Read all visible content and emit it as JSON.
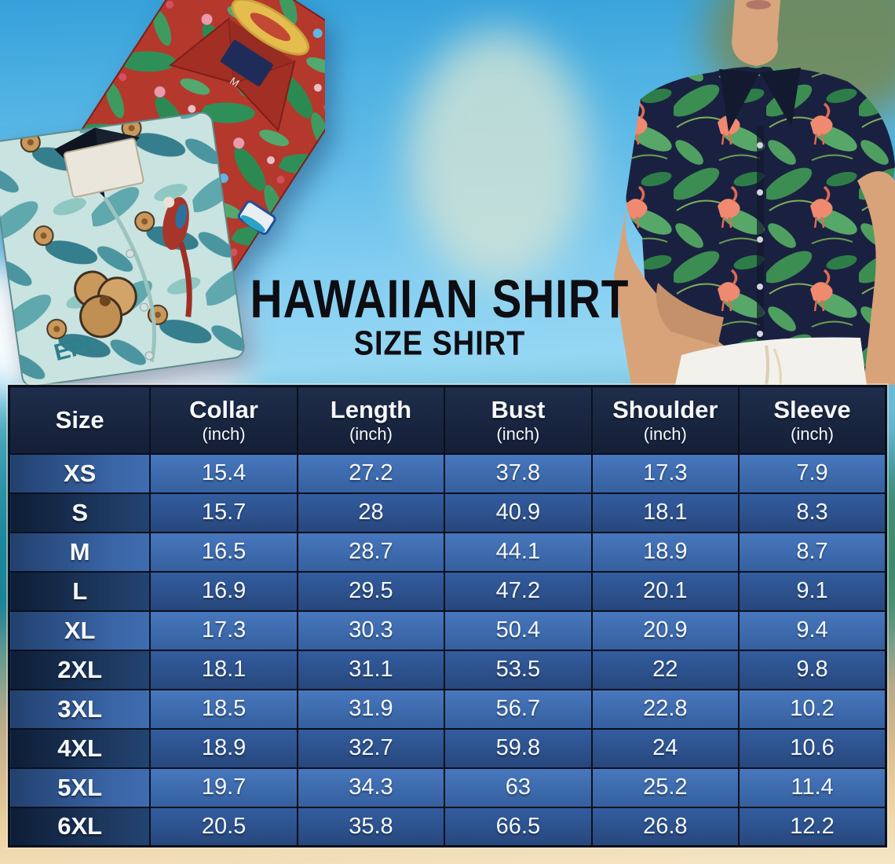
{
  "title": {
    "main": "HAWAIIAN SHIRT",
    "sub": "SIZE SHIRT"
  },
  "photos": {
    "left": "folded-hawaiian-shirts-photo",
    "right": "man-wearing-flamingo-hawaiian-shirt-photo",
    "shirt_print_text": "EPL",
    "neck_tag_size": "M"
  },
  "colors": {
    "header_bg": "#18253f",
    "row_light_value": "#3d6bb1",
    "row_dark_value": "#2c5190",
    "size_col_light": "#2c4d80",
    "size_col_dark": "#152843",
    "grid_line": "#0a101e",
    "table_text": "#ffffff",
    "title_text": "#0d0d12",
    "sky": "#4db1e2",
    "sea": "#1f8296",
    "sand": "#ecd2a4"
  },
  "chart_data": {
    "type": "table",
    "title": "HAWAIIAN SHIRT",
    "subtitle": "SIZE SHIRT",
    "columns": [
      {
        "label": "Size",
        "unit": ""
      },
      {
        "label": "Collar",
        "unit": "(inch)"
      },
      {
        "label": "Length",
        "unit": "(inch)"
      },
      {
        "label": "Bust",
        "unit": "(inch)"
      },
      {
        "label": "Shoulder",
        "unit": "(inch)"
      },
      {
        "label": "Sleeve",
        "unit": "(inch)"
      }
    ],
    "rows": [
      {
        "size": "XS",
        "values": [
          "15.4",
          "27.2",
          "37.8",
          "17.3",
          "7.9"
        ]
      },
      {
        "size": "S",
        "values": [
          "15.7",
          "28",
          "40.9",
          "18.1",
          "8.3"
        ]
      },
      {
        "size": "M",
        "values": [
          "16.5",
          "28.7",
          "44.1",
          "18.9",
          "8.7"
        ]
      },
      {
        "size": "L",
        "values": [
          "16.9",
          "29.5",
          "47.2",
          "20.1",
          "9.1"
        ]
      },
      {
        "size": "XL",
        "values": [
          "17.3",
          "30.3",
          "50.4",
          "20.9",
          "9.4"
        ]
      },
      {
        "size": "2XL",
        "values": [
          "18.1",
          "31.1",
          "53.5",
          "22",
          "9.8"
        ]
      },
      {
        "size": "3XL",
        "values": [
          "18.5",
          "31.9",
          "56.7",
          "22.8",
          "10.2"
        ]
      },
      {
        "size": "4XL",
        "values": [
          "18.9",
          "32.7",
          "59.8",
          "24",
          "10.6"
        ]
      },
      {
        "size": "5XL",
        "values": [
          "19.7",
          "34.3",
          "63",
          "25.2",
          "11.4"
        ]
      },
      {
        "size": "6XL",
        "values": [
          "20.5",
          "35.8",
          "66.5",
          "26.8",
          "12.2"
        ]
      }
    ]
  }
}
